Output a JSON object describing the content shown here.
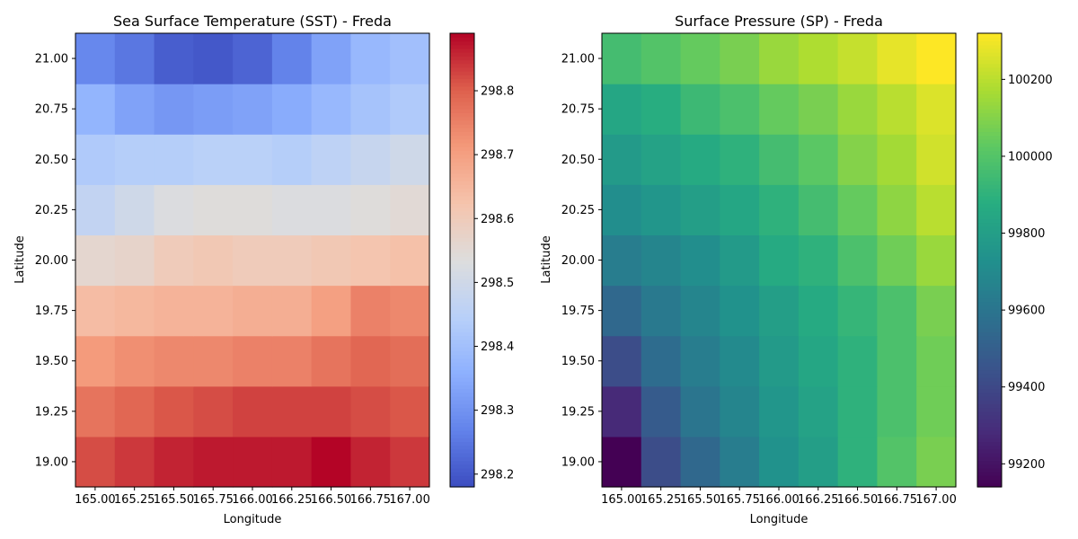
{
  "chart_data": [
    {
      "type": "heatmap",
      "title": "Sea Surface Temperature (SST) - Freda",
      "xlabel": "Longitude",
      "ylabel": "Latitude",
      "x": [
        165.0,
        165.25,
        165.5,
        165.75,
        166.0,
        166.25,
        166.5,
        166.75,
        167.0
      ],
      "y": [
        19.0,
        19.25,
        19.5,
        19.75,
        20.0,
        20.25,
        20.5,
        20.75,
        21.0
      ],
      "x_tick_labels": [
        "165.00",
        "165.25",
        "165.50",
        "165.75",
        "166.00",
        "166.25",
        "166.50",
        "166.75",
        "167.00"
      ],
      "y_tick_labels": [
        "19.00",
        "19.25",
        "19.50",
        "19.75",
        "20.00",
        "20.25",
        "20.50",
        "20.75",
        "21.00"
      ],
      "colormap": "coolwarm",
      "vmin": 298.18,
      "vmax": 298.89,
      "colorbar_ticks": [
        298.2,
        298.3,
        298.4,
        298.5,
        298.6,
        298.7,
        298.8
      ],
      "colorbar_tick_labels": [
        "298.2",
        "298.3",
        "298.4",
        "298.5",
        "298.6",
        "298.7",
        "298.8"
      ],
      "values": [
        [
          298.82,
          298.84,
          298.86,
          298.87,
          298.87,
          298.87,
          298.89,
          298.86,
          298.84
        ],
        [
          298.77,
          298.79,
          298.81,
          298.82,
          298.83,
          298.83,
          298.83,
          298.82,
          298.81
        ],
        [
          298.71,
          298.73,
          298.74,
          298.74,
          298.75,
          298.75,
          298.77,
          298.79,
          298.78
        ],
        [
          298.64,
          298.65,
          298.66,
          298.66,
          298.67,
          298.67,
          298.7,
          298.75,
          298.74
        ],
        [
          298.56,
          298.57,
          298.6,
          298.61,
          298.6,
          298.6,
          298.61,
          298.62,
          298.63
        ],
        [
          298.47,
          298.5,
          298.53,
          298.54,
          298.54,
          298.53,
          298.53,
          298.54,
          298.55
        ],
        [
          298.43,
          298.44,
          298.44,
          298.45,
          298.45,
          298.44,
          298.46,
          298.48,
          298.5
        ],
        [
          298.37,
          298.33,
          298.31,
          298.32,
          298.33,
          298.35,
          298.38,
          298.41,
          298.43
        ],
        [
          298.28,
          298.25,
          298.21,
          298.2,
          298.22,
          298.27,
          298.33,
          298.38,
          298.4
        ]
      ]
    },
    {
      "type": "heatmap",
      "title": "Surface Pressure (SP) - Freda",
      "xlabel": "Longitude",
      "ylabel": "Latitude",
      "x": [
        165.0,
        165.25,
        165.5,
        165.75,
        166.0,
        166.25,
        166.5,
        166.75,
        167.0
      ],
      "y": [
        19.0,
        19.25,
        19.5,
        19.75,
        20.0,
        20.25,
        20.5,
        20.75,
        21.0
      ],
      "x_tick_labels": [
        "165.00",
        "165.25",
        "165.50",
        "165.75",
        "166.00",
        "166.25",
        "166.50",
        "166.75",
        "167.00"
      ],
      "y_tick_labels": [
        "19.00",
        "19.25",
        "19.50",
        "19.75",
        "20.00",
        "20.25",
        "20.50",
        "20.75",
        "21.00"
      ],
      "colormap": "viridis",
      "vmin": 99140,
      "vmax": 100320,
      "colorbar_ticks": [
        99200,
        99400,
        99600,
        99800,
        100000,
        100200
      ],
      "colorbar_tick_labels": [
        "99200",
        "99400",
        "99600",
        "99800",
        "100000",
        "100200"
      ],
      "values": [
        [
          99140,
          99420,
          99540,
          99640,
          99740,
          99800,
          99900,
          100000,
          100080
        ],
        [
          99280,
          99480,
          99600,
          99680,
          99760,
          99820,
          99900,
          99980,
          100060
        ],
        [
          99420,
          99560,
          99640,
          99700,
          99780,
          99840,
          99900,
          99980,
          100060
        ],
        [
          99540,
          99620,
          99680,
          99740,
          99800,
          99860,
          99920,
          99980,
          100080
        ],
        [
          99640,
          99680,
          99720,
          99780,
          99860,
          99900,
          99980,
          100060,
          100140
        ],
        [
          99720,
          99760,
          99800,
          99840,
          99900,
          99960,
          100040,
          100120,
          100200
        ],
        [
          99780,
          99820,
          99860,
          99900,
          99960,
          100020,
          100100,
          100160,
          100240
        ],
        [
          99840,
          99880,
          99940,
          99980,
          100040,
          100080,
          100140,
          100200,
          100260
        ],
        [
          99960,
          100000,
          100040,
          100080,
          100140,
          100180,
          100220,
          100280,
          100320
        ]
      ]
    }
  ]
}
